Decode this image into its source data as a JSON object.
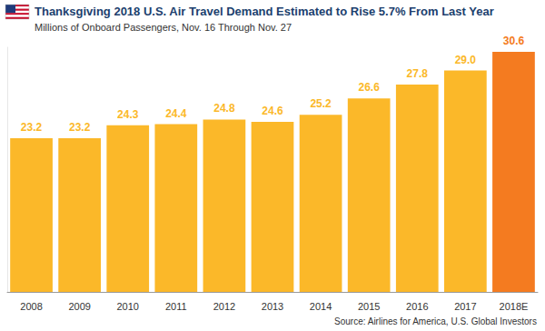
{
  "chart_data": {
    "type": "bar",
    "title": "Thanksgiving 2018 U.S. Air Travel Demand Estimated to Rise 5.7% From Last Year",
    "subtitle": "Millions of Onboard Passengers, Nov. 16 Through Nov. 27",
    "source": "Source: Airlines for America, U.S. Global Investors",
    "categories": [
      "2008",
      "2009",
      "2010",
      "2011",
      "2012",
      "2013",
      "2014",
      "2015",
      "2016",
      "2017",
      "2018E"
    ],
    "values": [
      23.2,
      23.2,
      24.3,
      24.4,
      24.8,
      24.6,
      25.2,
      26.6,
      27.8,
      29.0,
      30.6
    ],
    "value_labels": [
      "23.2",
      "23.2",
      "24.3",
      "24.4",
      "24.8",
      "24.6",
      "25.2",
      "26.6",
      "27.8",
      "29.0",
      "30.6"
    ],
    "colors": [
      "#FBB829",
      "#FBB829",
      "#FBB829",
      "#FBB829",
      "#FBB829",
      "#FBB829",
      "#FBB829",
      "#FBB829",
      "#FBB829",
      "#FBB829",
      "#F47B20"
    ],
    "ylim": [
      10,
      31
    ],
    "data_labels": true,
    "tick_labels": "x",
    "grid": false
  }
}
